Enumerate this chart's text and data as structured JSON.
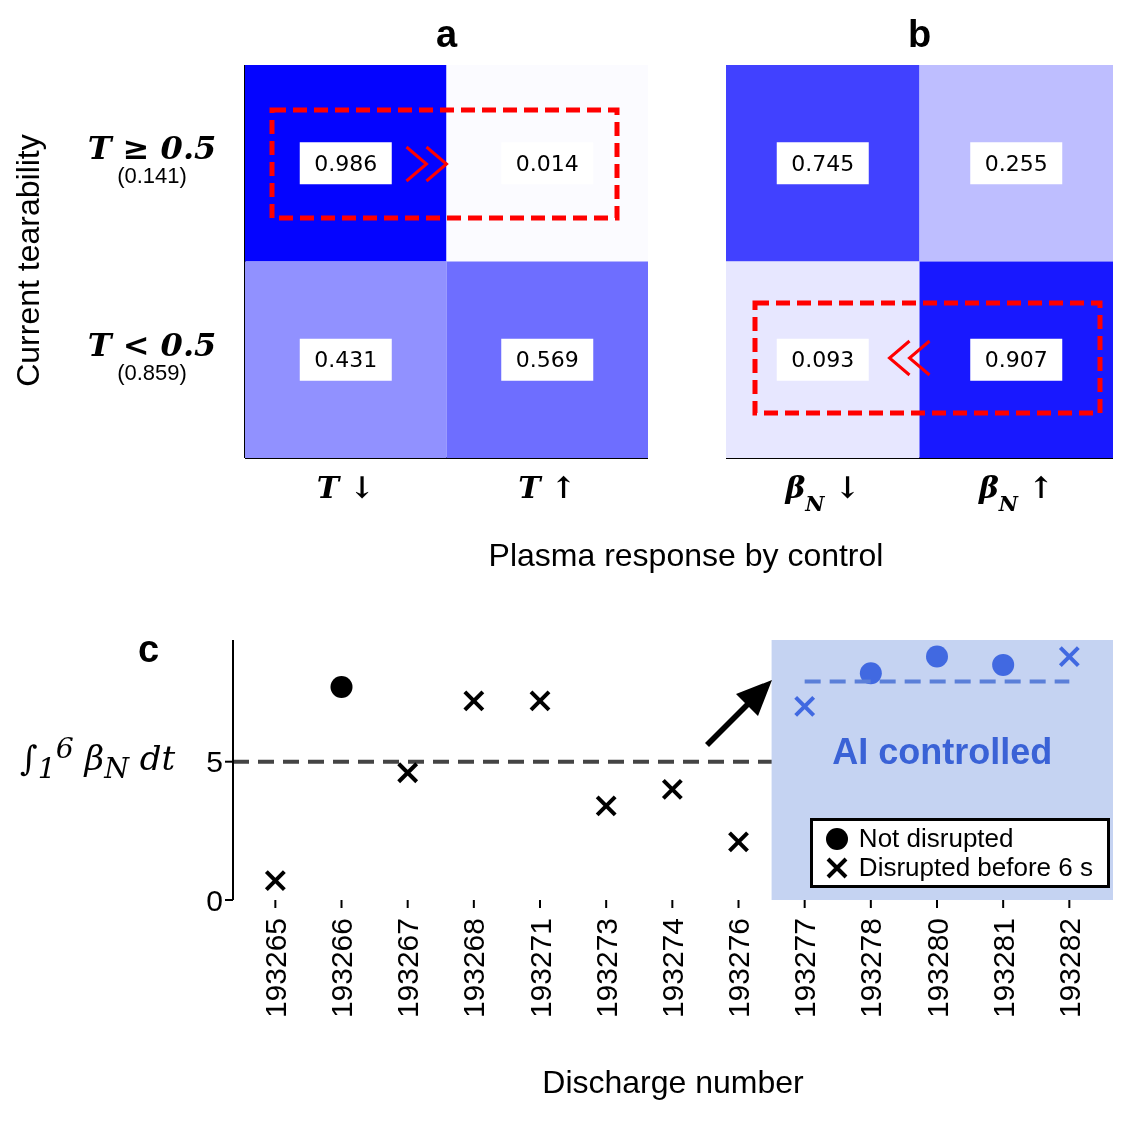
{
  "chart_data": [
    {
      "type": "heatmap",
      "title": "a",
      "xlabel": "Plasma response by control",
      "ylabel": "Current tearability",
      "categories": [
        "T ↓",
        "T ↑"
      ],
      "y_categories": [
        "T ≥ 0.5\n(0.141)",
        "T < 0.5\n(0.859)"
      ],
      "cells": [
        [
          0.986,
          0.014
        ],
        [
          0.431,
          0.569
        ]
      ],
      "data_labels": true
    },
    {
      "type": "heatmap",
      "title": "b",
      "categories": [
        "β$_{N}$ ↓",
        "β$_{N}$ ↑"
      ],
      "y_categories": [
        null,
        null
      ],
      "cells": [
        [
          0.745,
          0.255
        ],
        [
          0.093,
          0.907
        ]
      ],
      "data_labels": true,
      "tick_labels": "x"
    },
    {
      "type": "scatter",
      "title": "c",
      "xlabel": "Discharge number",
      "ylabel": "∫$_{1}$$^{6}$ β$_{N}$ dt",
      "categories": [
        "193265",
        "193266",
        "193267",
        "193268",
        "193271",
        "193273",
        "193274",
        "193276",
        "193277",
        "193278",
        "193280",
        "193281",
        "193282"
      ],
      "series": [
        {
          "name": "Not disrupted",
          "color": "#000000",
          "marker": "circle",
          "values": [
            null,
            7.7,
            null,
            null,
            null,
            null,
            null,
            null,
            null,
            null,
            null,
            null,
            null
          ]
        },
        {
          "name": "Disrupted before 6 s",
          "color": "#000000",
          "marker": "cross",
          "values": [
            0.7,
            null,
            4.6,
            7.2,
            7.2,
            3.4,
            4.0,
            2.1,
            null,
            null,
            null,
            null,
            null
          ]
        },
        {
          "color": "#4169e1",
          "marker": "circle",
          "values": [
            null,
            null,
            null,
            null,
            null,
            null,
            null,
            null,
            null,
            8.2,
            8.8,
            8.5,
            null
          ]
        },
        {
          "color": "#4169e1",
          "marker": "cross",
          "values": [
            null,
            null,
            null,
            null,
            null,
            null,
            null,
            null,
            7.0,
            null,
            null,
            null,
            8.8
          ]
        },
        {
          "type": "line",
          "color": "#5b7fd8",
          "line_style": "dashed",
          "marker": "none",
          "values": [
            null,
            null,
            null,
            null,
            null,
            null,
            null,
            null,
            7.9,
            7.9,
            7.9,
            7.9,
            7.9
          ]
        }
      ],
      "ylim": [
        0,
        9.4
      ],
      "yticks": [
        0,
        5
      ],
      "ref_lines": [
        {
          "axis": "y",
          "value": 5,
          "color": "#444444",
          "line_style": "dashed"
        }
      ],
      "bands": [
        {
          "axis": "x",
          "from": "193277",
          "to": "193282",
          "label": "AI controlled",
          "color": "#c5d3f2"
        }
      ],
      "legend": "bottom right"
    }
  ]
}
